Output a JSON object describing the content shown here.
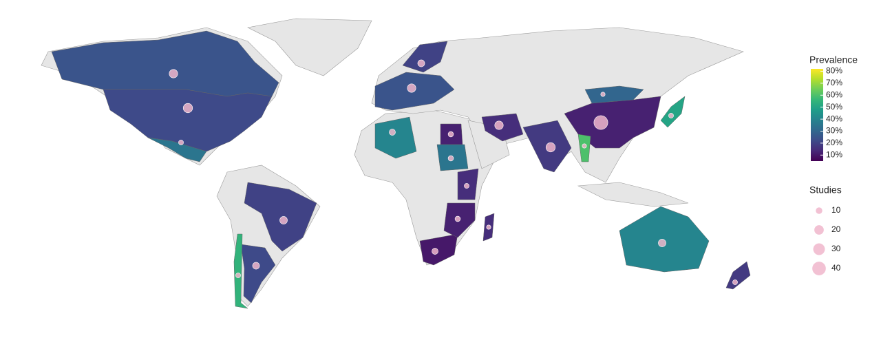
{
  "map": {
    "prevalence_legend": {
      "title": "Prevalence",
      "lim": [
        5,
        82
      ],
      "ticks": [
        {
          "value": 80,
          "label": "80%"
        },
        {
          "value": 70,
          "label": "70%"
        },
        {
          "value": 60,
          "label": "60%"
        },
        {
          "value": 50,
          "label": "50%"
        },
        {
          "value": 40,
          "label": "40%"
        },
        {
          "value": 30,
          "label": "30%"
        },
        {
          "value": 20,
          "label": "20%"
        },
        {
          "value": 10,
          "label": "10%"
        }
      ]
    },
    "studies_legend": {
      "title": "Studies",
      "ticks": [
        10,
        20,
        30,
        40
      ]
    },
    "regions": [
      {
        "prevalence": 25,
        "studies": 15
      },
      {
        "prevalence": 22,
        "studies": 18
      },
      {
        "prevalence": 35,
        "studies": 5
      },
      {
        "prevalence": 20,
        "studies": 12
      },
      {
        "prevalence": 22,
        "studies": 10
      },
      {
        "prevalence": 55,
        "studies": 5
      },
      {
        "prevalence": 40,
        "studies": 8
      },
      {
        "prevalence": 12,
        "studies": 6
      },
      {
        "prevalence": 35,
        "studies": 6
      },
      {
        "prevalence": 10,
        "studies": 8
      },
      {
        "prevalence": 12,
        "studies": 40
      },
      {
        "prevalence": 18,
        "studies": 18
      },
      {
        "prevalence": 40,
        "studies": 12
      },
      {
        "prevalence": 25,
        "studies": 15
      },
      {
        "prevalence": 20,
        "studies": 10
      },
      {
        "prevalence": 50,
        "studies": 5
      },
      {
        "prevalence": 30,
        "studies": 4
      },
      {
        "prevalence": 18,
        "studies": 5
      },
      {
        "prevalence": 15,
        "studies": 5
      },
      {
        "prevalence": 12,
        "studies": 6
      },
      {
        "prevalence": 15,
        "studies": 4
      },
      {
        "prevalence": 15,
        "studies": 15
      },
      {
        "prevalence": 60,
        "studies": 4
      }
    ]
  }
}
